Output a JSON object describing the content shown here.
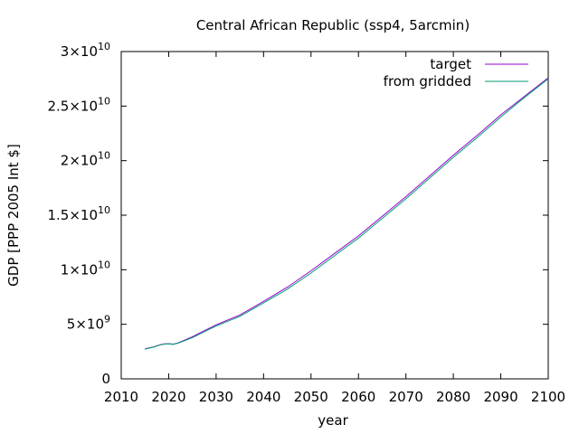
{
  "chart_data": {
    "type": "line",
    "title": "Central African Republic (ssp4, 5arcmin)",
    "xlabel": "year",
    "ylabel": "GDP [PPP 2005 Int $]",
    "xlim": [
      2010,
      2100
    ],
    "ylim": [
      0,
      30000000000
    ],
    "x_ticks": [
      2010,
      2020,
      2030,
      2040,
      2050,
      2060,
      2070,
      2080,
      2090,
      2100
    ],
    "x_tick_labels": [
      "2010",
      "2020",
      "2030",
      "2040",
      "2050",
      "2060",
      "2070",
      "2080",
      "2090",
      "2100"
    ],
    "y_ticks": [
      {
        "value": 0,
        "mantissa": "0",
        "exp": ""
      },
      {
        "value": 5000000000,
        "mantissa": "5×10",
        "exp": "9"
      },
      {
        "value": 10000000000,
        "mantissa": "1×10",
        "exp": "10"
      },
      {
        "value": 15000000000,
        "mantissa": "1.5×10",
        "exp": "10"
      },
      {
        "value": 20000000000,
        "mantissa": "2×10",
        "exp": "10"
      },
      {
        "value": 25000000000,
        "mantissa": "2.5×10",
        "exp": "10"
      },
      {
        "value": 30000000000,
        "mantissa": "3×10",
        "exp": "10"
      }
    ],
    "grid": false,
    "legend": "top-right",
    "x": [
      2015,
      2016,
      2017,
      2018,
      2019,
      2020,
      2021,
      2022,
      2023,
      2025,
      2027,
      2030,
      2035,
      2040,
      2045,
      2050,
      2055,
      2060,
      2065,
      2070,
      2075,
      2080,
      2085,
      2090,
      2095,
      2100
    ],
    "series": [
      {
        "name": "target",
        "color": "#9400d3",
        "values": [
          2750000000.0,
          2850000000.0,
          2950000000.0,
          3100000000.0,
          3200000000.0,
          3220000000.0,
          3180000000.0,
          3300000000.0,
          3480000000.0,
          3850000000.0,
          4300000000.0,
          4950000000.0,
          5850000000.0,
          7100000000.0,
          8400000000.0,
          9900000000.0,
          11500000000.0,
          13100000000.0,
          14900000000.0,
          16700000000.0,
          18600000000.0,
          20500000000.0,
          22300000000.0,
          24200000000.0,
          25900000000.0,
          27600000000.0
        ]
      },
      {
        "name": "from gridded",
        "color": "#009e73",
        "values": [
          2730000000.0,
          2830000000.0,
          2930000000.0,
          3080000000.0,
          3180000000.0,
          3200000000.0,
          3160000000.0,
          3270000000.0,
          3440000000.0,
          3780000000.0,
          4200000000.0,
          4850000000.0,
          5730000000.0,
          6950000000.0,
          8220000000.0,
          9700000000.0,
          11300000000.0,
          12900000000.0,
          14700000000.0,
          16500000000.0,
          18400000000.0,
          20300000000.0,
          22100000000.0,
          24000000000.0,
          25800000000.0,
          27500000000.0
        ]
      }
    ]
  }
}
